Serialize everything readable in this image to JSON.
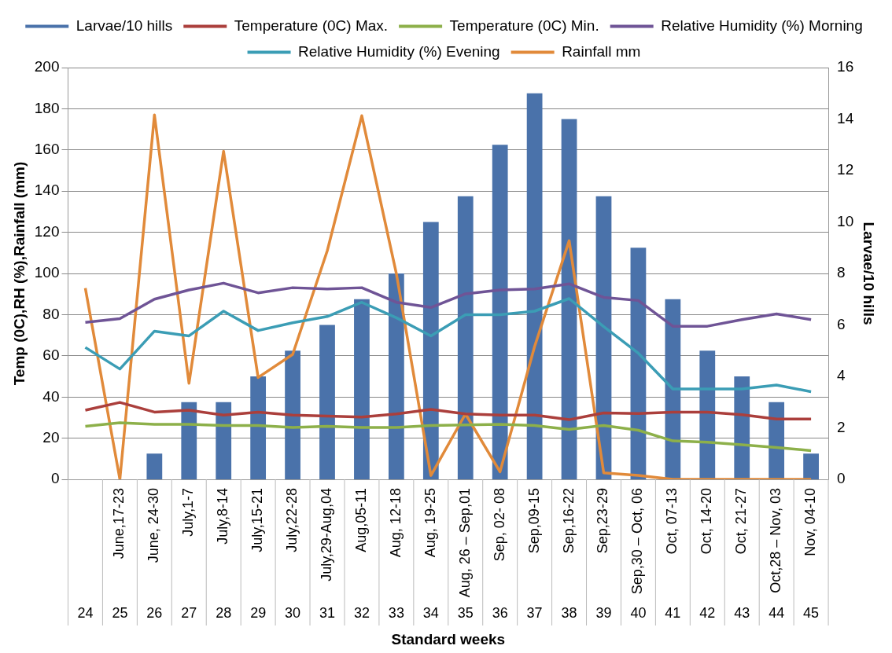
{
  "chart_data": {
    "type": "line",
    "categories": [
      null,
      "June,17-23",
      "June, 24-30",
      "July,1-7",
      "July,8-14",
      "July,15-21",
      "July,22-28",
      "July,29-Aug,04",
      "Aug,05-11",
      "Aug, 12-18",
      "Aug, 19-25",
      "Aug, 26 – Sep,01",
      "Sep, 02- 08",
      "Sep,09-15",
      "Sep,16-22",
      "Sep,23-29",
      "Sep,30 – Oct, 06",
      "Oct, 07-13",
      "Oct, 14-20",
      "Oct, 21-27",
      "Oct,28 – Nov, 03",
      "Nov, 04-10"
    ],
    "series": [
      {
        "name": "Larvae/10 hills",
        "type": "bar",
        "axis": "y2",
        "color": "#4a72aa",
        "values": [
          0,
          0,
          1,
          3,
          3,
          4,
          5,
          6,
          7,
          8,
          10,
          11,
          13,
          15,
          14,
          11,
          9,
          7,
          5,
          4,
          3,
          1
        ]
      },
      {
        "name": "Temperature (0C) Max.",
        "color": "#ab3f3c",
        "values": [
          33.6,
          37.4,
          32.7,
          33.6,
          31.2,
          32.7,
          31.2,
          30.8,
          30.3,
          31.8,
          34,
          31.8,
          31.2,
          31.2,
          29,
          32.3,
          32,
          32.7,
          32.7,
          31.4,
          29.3,
          29.3
        ]
      },
      {
        "name": "Temperature (0C) Min.",
        "color": "#8db04a",
        "values": [
          25.8,
          27.5,
          26.7,
          26.7,
          26.2,
          26.2,
          25.2,
          25.8,
          25.2,
          25.2,
          26.2,
          26.5,
          26.7,
          26.2,
          24.3,
          26.2,
          23.9,
          18.7,
          18.1,
          16.8,
          15.5,
          14
        ]
      },
      {
        "name": "Relative Humidity (%) Morning",
        "color": "#6f5496",
        "values": [
          76.3,
          78.1,
          87.5,
          92,
          95.3,
          90.6,
          93.1,
          92.5,
          93.1,
          86,
          83.5,
          90.1,
          92,
          92.5,
          95,
          88.4,
          86.9,
          74.4,
          74.4,
          77.6,
          80.4,
          77.6
        ]
      },
      {
        "name": "Relative Humidity (%) Evening",
        "color": "#3b9db5",
        "values": [
          64.1,
          53.6,
          72,
          69.7,
          81.7,
          72.3,
          76.1,
          79.1,
          86,
          78.5,
          69.7,
          80,
          80,
          81.7,
          87.8,
          74.2,
          61.3,
          43.9,
          43.9,
          43.9,
          45.8,
          42.6
        ]
      },
      {
        "name": "Rainfall mm",
        "color": "#e18a3a",
        "values": [
          92.9,
          0,
          177,
          46.7,
          159.4,
          49.5,
          60.7,
          111,
          176.6,
          100,
          1.9,
          31.8,
          3.7,
          64.5,
          115.9,
          3.2,
          1.9,
          0,
          0,
          0,
          0,
          0
        ]
      }
    ],
    "xlabel": "Standard weeks",
    "ylabel": "Temp (0C),RH (%),Rainfall (mm)",
    "y2label": "Larvae/10 hills",
    "ylim": [
      0,
      200
    ],
    "yticks": [
      0,
      20,
      40,
      60,
      80,
      100,
      120,
      140,
      160,
      180,
      200
    ],
    "y2lim": [
      0,
      16
    ],
    "y2ticks": [
      0,
      2,
      4,
      6,
      8,
      10,
      12,
      14,
      16
    ],
    "annotations": [
      "24",
      "25",
      "26",
      "27",
      "28",
      "29",
      "30",
      "31",
      "32",
      "33",
      "34",
      "35",
      "36",
      "37",
      "38",
      "39",
      "40",
      "41",
      "42",
      "43",
      "44",
      "45"
    ],
    "grid": "y",
    "legend": "top",
    "marker": "none",
    "line_style": "solid"
  }
}
